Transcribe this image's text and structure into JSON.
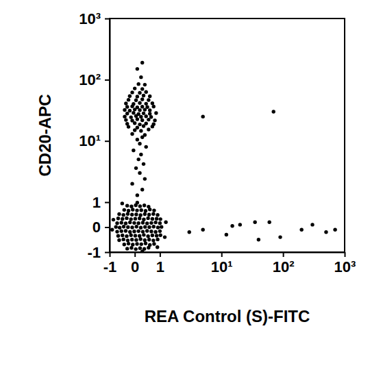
{
  "chart_data": {
    "type": "scatter",
    "xlabel": "REA Control (S)-FITC",
    "ylabel": "CD20-APC",
    "log": true,
    "color": "#000000",
    "marker": "circle",
    "xlim": [
      -1,
      1000
    ],
    "ylim": [
      -1,
      1000
    ],
    "xticks": [
      -1,
      0,
      1,
      {
        "value": 10,
        "label": "10¹"
      },
      {
        "value": 100,
        "label": "10²"
      },
      {
        "value": 1000,
        "label": "10³"
      }
    ],
    "yticks": [
      -1,
      0,
      1,
      {
        "value": 10,
        "label": "10¹"
      },
      {
        "value": 100,
        "label": "10²"
      },
      {
        "value": 1000,
        "label": "10³"
      }
    ],
    "x": [
      -0.3,
      -0.13,
      0.04,
      0.21,
      0.38,
      0.55,
      -0.42,
      -0.25,
      -0.08,
      0.09,
      0.26,
      0.43,
      0.6,
      0.77,
      -0.62,
      -0.45,
      -0.28,
      -0.11,
      0.06,
      0.23,
      0.4,
      0.57,
      0.74,
      0.91,
      -0.66,
      -0.49,
      -0.32,
      -0.15,
      0.02,
      0.19,
      0.36,
      0.53,
      0.7,
      0.87,
      1.02,
      -0.7,
      -0.53,
      -0.36,
      -0.19,
      -0.02,
      0.15,
      0.32,
      0.49,
      0.66,
      0.83,
      1.0,
      -0.75,
      -0.6,
      -0.44,
      -0.27,
      -0.1,
      0.07,
      0.24,
      0.41,
      0.58,
      0.75,
      0.92,
      1.06,
      -0.7,
      -0.53,
      -0.36,
      -0.19,
      -0.02,
      0.15,
      0.32,
      0.49,
      0.66,
      0.83,
      1.0,
      -0.66,
      -0.49,
      -0.32,
      -0.15,
      0.02,
      0.19,
      0.36,
      0.53,
      0.7,
      0.87,
      1.02,
      -0.62,
      -0.45,
      -0.28,
      -0.11,
      0.06,
      0.23,
      0.4,
      0.57,
      0.74,
      0.91,
      -0.42,
      -0.25,
      -0.08,
      0.09,
      0.26,
      0.43,
      0.6,
      0.77,
      -0.3,
      -0.13,
      0.04,
      0.21,
      0.38,
      0.55,
      -0.85,
      1.2,
      0.3,
      -0.5,
      0.9,
      0.1,
      1.25,
      -0.9,
      0.1,
      0.3,
      -0.1,
      0.4,
      0.2,
      0.05,
      0.35,
      0.15,
      0.25,
      -0.05,
      0.45,
      0.2,
      0.1,
      0.3,
      -0.1,
      0.4,
      0.0,
      0.25,
      0.55,
      -0.25,
      0.1,
      0.35,
      0.7,
      -0.3,
      0.0,
      0.2,
      0.45,
      0.75,
      -0.35,
      -0.1,
      0.1,
      0.3,
      0.55,
      0.8,
      -0.4,
      -0.15,
      0.05,
      0.25,
      0.45,
      0.65,
      -0.3,
      -0.05,
      0.15,
      0.35,
      0.6,
      0.85,
      -0.4,
      -0.2,
      0.0,
      0.2,
      0.4,
      0.6,
      -0.3,
      -0.1,
      0.1,
      0.3,
      0.5,
      0.75,
      -0.35,
      -0.05,
      0.2,
      0.45,
      0.7,
      -0.25,
      0.05,
      0.3,
      0.55,
      -0.2,
      0.1,
      0.35,
      0.6,
      -0.1,
      0.2,
      0.45,
      0.0,
      0.3,
      0.15,
      0.4,
      0.25,
      0.1,
      0.3,
      3,
      5,
      12,
      20,
      35,
      60,
      15,
      90,
      200,
      300,
      500,
      700,
      40,
      70,
      5
    ],
    "values": [
      -0.86,
      -0.83,
      -0.88,
      -0.84,
      -0.87,
      -0.82,
      -0.69,
      -0.66,
      -0.7,
      -0.67,
      -0.68,
      -0.65,
      -0.71,
      -0.67,
      -0.52,
      -0.49,
      -0.53,
      -0.5,
      -0.51,
      -0.48,
      -0.52,
      -0.5,
      -0.53,
      -0.49,
      -0.35,
      -0.33,
      -0.36,
      -0.32,
      -0.34,
      -0.35,
      -0.31,
      -0.36,
      -0.33,
      -0.34,
      -0.32,
      -0.18,
      -0.16,
      -0.15,
      -0.19,
      -0.17,
      -0.16,
      -0.18,
      -0.15,
      -0.17,
      -0.19,
      -0.16,
      0.01,
      -0.02,
      0.02,
      0,
      -0.01,
      0.02,
      -0.02,
      0.01,
      0,
      0.02,
      -0.01,
      0.01,
      0.16,
      0.18,
      0.15,
      0.19,
      0.17,
      0.16,
      0.18,
      0.15,
      0.17,
      0.19,
      0.16,
      0.35,
      0.33,
      0.36,
      0.32,
      0.34,
      0.35,
      0.31,
      0.36,
      0.33,
      0.34,
      0.32,
      0.52,
      0.49,
      0.53,
      0.5,
      0.51,
      0.48,
      0.52,
      0.5,
      0.53,
      0.49,
      0.69,
      0.66,
      0.7,
      0.67,
      0.68,
      0.65,
      0.71,
      0.67,
      0.86,
      0.83,
      0.88,
      0.84,
      0.87,
      0.82,
      0.3,
      -0.4,
      -0.97,
      0.95,
      -0.8,
      0.98,
      0.2,
      -0.1,
      1.3,
      1.6,
      2,
      2.4,
      3,
      3.6,
      4.2,
      5,
      6,
      7,
      8,
      9,
      10.5,
      11.5,
      13,
      12.5,
      15,
      14.6,
      15.4,
      17,
      16.5,
      17.5,
      17.2,
      19,
      19.5,
      18.6,
      19.3,
      18.8,
      22,
      21.5,
      22.6,
      21.8,
      22.3,
      21.7,
      25,
      24.4,
      25.6,
      24.8,
      25.3,
      24.6,
      28,
      28.7,
      27.5,
      28.3,
      27.8,
      28.5,
      32,
      31.3,
      32.6,
      31.8,
      32.4,
      31.6,
      36,
      36.8,
      35.4,
      36.3,
      35.7,
      36.5,
      41,
      40.2,
      41.7,
      40.6,
      41.3,
      47,
      46.2,
      47.8,
      46.6,
      54,
      53.1,
      55,
      53.6,
      62,
      61,
      63,
      72,
      70.5,
      85,
      83,
      110,
      150,
      190,
      -0.2,
      -0.1,
      -0.3,
      0.1,
      0.2,
      0.2,
      0.05,
      -0.4,
      -0.1,
      0.1,
      -0.2,
      -0.1,
      -0.5,
      30,
      25
    ]
  }
}
